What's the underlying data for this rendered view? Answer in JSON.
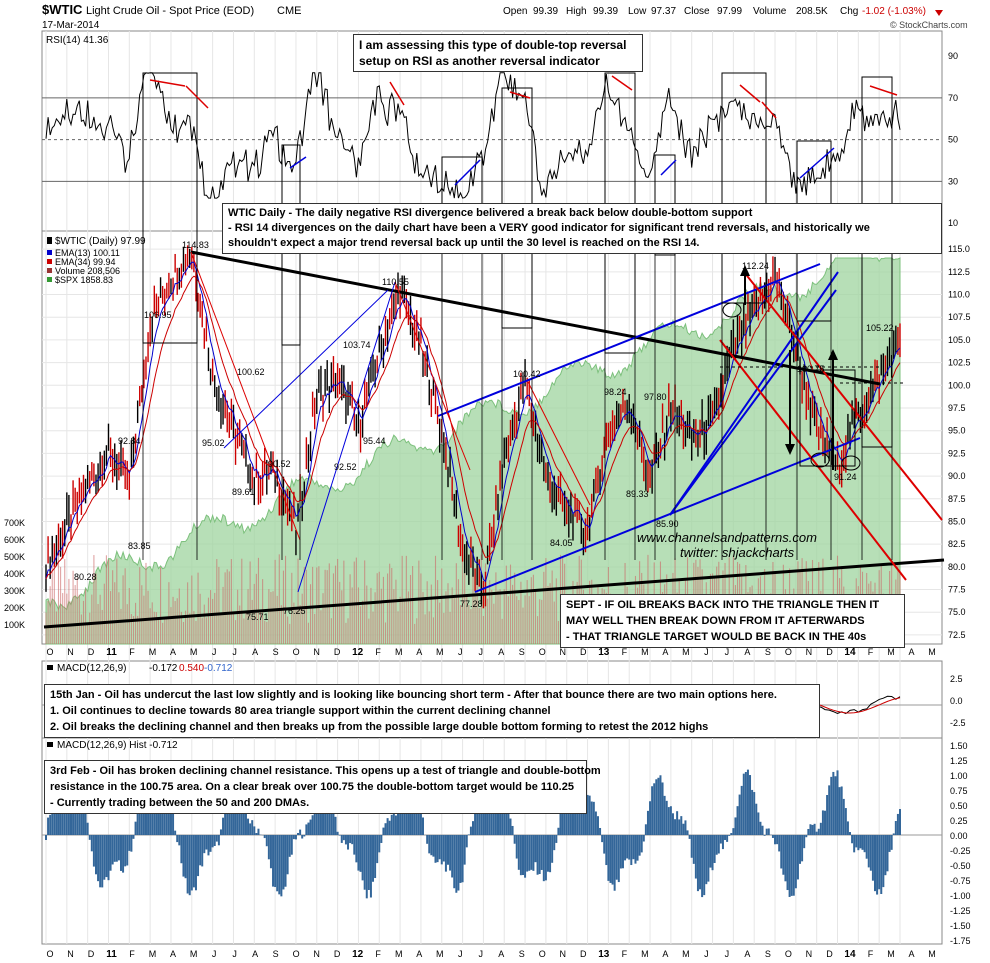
{
  "header": {
    "symbol": "$WTIC",
    "name": "Light Crude Oil - Spot Price (EOD)",
    "exchange": "CME",
    "date": "17-Mar-2014",
    "open_label": "Open",
    "open": "99.39",
    "high_label": "High",
    "high": "99.39",
    "low_label": "Low",
    "low": "97.37",
    "close_label": "Close",
    "close": "97.99",
    "volume_label": "Volume",
    "volume": "208.5K",
    "chg_label": "Chg",
    "chg": "-1.02 (-1.03%)",
    "copyright": "© StockCharts.com"
  },
  "rsi_panel": {
    "label": "RSI(14) 41.36",
    "ticks": [
      90,
      70,
      50,
      30,
      10
    ]
  },
  "price_panel": {
    "legend": [
      {
        "text": "$WTIC (Daily) 97.99",
        "color": "#000000"
      },
      {
        "text": "EMA(13) 100.11",
        "color": "#0000cc"
      },
      {
        "text": "EMA(34) 99.94",
        "color": "#cc0000"
      },
      {
        "text": "Volume 208,506",
        "color": "#993333"
      },
      {
        "text": "$SPX 1858.83",
        "color": "#339933"
      }
    ],
    "price_ticks": [
      "115.0",
      "112.5",
      "110.0",
      "107.5",
      "105.0",
      "102.5",
      "100.0",
      "97.5",
      "95.0",
      "92.5",
      "90.0",
      "87.5",
      "85.0",
      "82.5",
      "80.0",
      "77.5",
      "75.0",
      "72.5"
    ],
    "volume_ticks": [
      "700K",
      "600K",
      "500K",
      "400K",
      "300K",
      "200K",
      "100K"
    ],
    "annotations": [
      "114.83",
      "106.95",
      "110.55",
      "103.74",
      "100.62",
      "95.02",
      "92.84",
      "89.61",
      "90.52",
      "92.52",
      "95.44",
      "83.85",
      "80.28",
      "75.71",
      "76.25",
      "77.28",
      "100.42",
      "84.05",
      "98.24",
      "97.80",
      "89.33",
      "85.90",
      "112.24",
      "100.75",
      "105.22",
      "91.24"
    ],
    "watermark1": "www.channelsandpatterns.com",
    "watermark2": "twitter: shjackcharts"
  },
  "macd_panel": {
    "label_prefix": "MACD(12,26,9)",
    "v1": "-0.172",
    "v2": "0.540",
    "v3": "-0.712",
    "ticks": [
      "2.5",
      "0.0",
      "-2.5"
    ]
  },
  "hist_panel": {
    "label": "MACD(12,26,9) Hist -0.712",
    "ticks": [
      "1.50",
      "1.25",
      "1.00",
      "0.75",
      "0.50",
      "0.25",
      "0.00",
      "-0.25",
      "-0.50",
      "-0.75",
      "-1.00",
      "-1.25",
      "-1.50",
      "-1.75"
    ]
  },
  "x_axis": [
    "O",
    "N",
    "D",
    "11",
    "F",
    "M",
    "A",
    "M",
    "J",
    "J",
    "A",
    "S",
    "O",
    "N",
    "D",
    "12",
    "F",
    "M",
    "A",
    "M",
    "J",
    "J",
    "A",
    "S",
    "O",
    "N",
    "D",
    "13",
    "F",
    "M",
    "A",
    "M",
    "J",
    "J",
    "A",
    "S",
    "O",
    "N",
    "D",
    "14",
    "F",
    "M",
    "A",
    "M"
  ],
  "notes": {
    "rsi_note": [
      "I am assessing this type of double-top reversal",
      "setup on RSI as another reversal indicator"
    ],
    "daily_note": [
      "WTIC Daily - The daily negative RSI divergence belivered a break back below double-bottom support",
      "- RSI 14 divergences on the daily chart have been a VERY good indicator for significant trend reversals, and historically we",
      "shouldn't expect a major trend reversal back up until the 30 level is reached on the RSI 14."
    ],
    "sept_note": [
      "SEPT - IF OIL BREAKS BACK INTO THE TRIANGLE THEN IT",
      "MAY WELL THEN BREAK DOWN FROM IT AFTERWARDS",
      "- THAT TRIANGLE TARGET WOULD BE BACK IN THE 40s"
    ],
    "jan_note": [
      "15th Jan - Oil has undercut the last low slightly and is looking like bouncing short term - After that bounce there are two main options here.",
      "1. Oil continues to decline towards 80 area triangle support within the current declining channel",
      "2. Oil breaks the declining channel and then breaks up from the possible large double bottom forming to retest the 2012 highs"
    ],
    "feb_note": [
      "3rd Feb - Oil has broken declining channel resistance. This opens up a test of triangle and double-bottom",
      "resistance in the 100.75 area. On a clear break over 100.75 the double-bottom target would be 110.25",
      "- Currently trading between the 50 and 200 DMAs."
    ]
  },
  "chart_data": {
    "type": "line",
    "title": "$WTIC Light Crude Oil - Spot Price (EOD) CME",
    "x": [
      "O",
      "N",
      "D",
      "11",
      "F",
      "M",
      "A",
      "M",
      "J",
      "J",
      "A",
      "S",
      "O",
      "N",
      "D",
      "12",
      "F",
      "M",
      "A",
      "M",
      "J",
      "J",
      "A",
      "S",
      "O",
      "N",
      "D",
      "13",
      "F",
      "M",
      "A",
      "M",
      "J",
      "J",
      "A",
      "S",
      "O",
      "N",
      "D",
      "14",
      "F",
      "M"
    ],
    "series": [
      {
        "name": "$WTIC (Daily)",
        "values": [
          80.28,
          84.5,
          89.0,
          92.84,
          89.0,
          106.95,
          112.0,
          114.83,
          101.0,
          95.02,
          89.61,
          90.52,
          83.85,
          99.0,
          100.62,
          95.44,
          103.74,
          110.55,
          104.0,
          95.0,
          82.0,
          77.28,
          92.0,
          100.42,
          90.0,
          86.0,
          84.05,
          95.0,
          98.24,
          89.33,
          97.8,
          94.0,
          96.0,
          104.0,
          108.0,
          112.24,
          104.0,
          95.0,
          91.24,
          97.0,
          100.75,
          105.22
        ]
      }
    ],
    "ylabel": "",
    "ylim": [
      72.5,
      116
    ]
  }
}
